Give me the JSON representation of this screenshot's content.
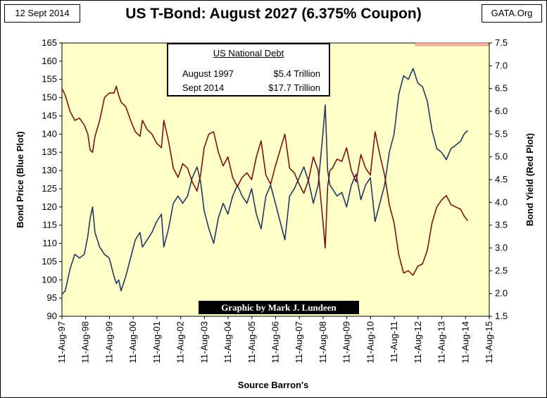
{
  "date_label": "12 Sept 2014",
  "site_label": "GATA.Org",
  "chart_data": {
    "type": "line",
    "title": "US T-Bond: August 2027 (6.375% Coupon)",
    "xlabel": "Source Barron's",
    "ylabel_left": "Bond Price   (Blue Plot)",
    "ylabel_right": "Bond Yield   (Red Plot)",
    "x_ticks": [
      "11-Aug-97",
      "11-Aug-98",
      "11-Aug-99",
      "11-Aug-00",
      "11-Aug-01",
      "11-Aug-02",
      "11-Aug-03",
      "11-Aug-04",
      "11-Aug-05",
      "11-Aug-06",
      "11-Aug-07",
      "11-Aug-08",
      "11-Aug-09",
      "11-Aug-10",
      "11-Aug-11",
      "11-Aug-12",
      "11-Aug-13",
      "11-Aug-14",
      "11-Aug-15"
    ],
    "x_range": [
      1997.61,
      2015.61
    ],
    "ylim_left": [
      90,
      165
    ],
    "ylim_right": [
      1.5,
      7.5
    ],
    "left_ticks": [
      90,
      95,
      100,
      105,
      110,
      115,
      120,
      125,
      130,
      135,
      140,
      145,
      150,
      155,
      160,
      165
    ],
    "right_ticks": [
      "1.5",
      "2.0",
      "2.5",
      "3.0",
      "3.5",
      "4.0",
      "4.5",
      "5.0",
      "5.5",
      "6.0",
      "6.5",
      "7.0",
      "7.5"
    ],
    "series": [
      {
        "name": "Bond Price",
        "axis": "left",
        "color": "#1f3864",
        "x": [
          1997.61,
          1997.75,
          1997.95,
          1998.15,
          1998.35,
          1998.55,
          1998.7,
          1998.8,
          1998.9,
          1999.0,
          1999.2,
          1999.4,
          1999.6,
          1999.8,
          1999.9,
          2000.0,
          2000.1,
          2000.3,
          2000.5,
          2000.7,
          2000.9,
          2001.0,
          2001.2,
          2001.4,
          2001.6,
          2001.8,
          2001.9,
          2002.1,
          2002.3,
          2002.5,
          2002.7,
          2002.9,
          2003.1,
          2003.3,
          2003.45,
          2003.6,
          2003.8,
          2004.0,
          2004.2,
          2004.4,
          2004.6,
          2004.8,
          2005.0,
          2005.2,
          2005.4,
          2005.6,
          2005.8,
          2006.0,
          2006.2,
          2006.4,
          2006.6,
          2006.8,
          2007.0,
          2007.2,
          2007.4,
          2007.6,
          2007.8,
          2008.0,
          2008.2,
          2008.4,
          2008.6,
          2008.7,
          2008.8,
          2008.9,
          2009.0,
          2009.2,
          2009.4,
          2009.6,
          2009.8,
          2010.0,
          2010.2,
          2010.4,
          2010.6,
          2010.8,
          2011.0,
          2011.2,
          2011.4,
          2011.6,
          2011.8,
          2012.0,
          2012.2,
          2012.4,
          2012.6,
          2012.8,
          2013.0,
          2013.2,
          2013.4,
          2013.6,
          2013.8,
          2014.0,
          2014.2,
          2014.4,
          2014.55,
          2014.7
        ],
        "values": [
          96,
          97,
          103,
          107,
          106,
          107,
          112,
          117,
          120,
          113,
          109,
          107,
          106,
          101,
          99,
          100,
          97,
          101,
          106,
          111,
          113,
          109,
          111,
          113,
          116,
          118,
          109,
          114,
          121,
          123,
          121,
          123,
          128,
          131,
          127,
          119,
          114,
          110,
          117,
          121,
          118,
          123,
          126,
          123,
          121,
          125,
          118,
          114,
          123,
          126,
          121,
          116,
          111,
          123,
          125,
          128,
          131,
          127,
          121,
          126,
          140,
          148,
          130,
          126,
          125,
          123,
          124,
          120,
          126,
          129,
          122,
          126,
          128,
          116,
          121,
          126,
          135,
          140,
          151,
          156,
          155,
          158,
          154,
          153,
          149,
          141,
          136,
          135,
          133,
          136,
          137,
          138,
          140,
          141
        ]
      },
      {
        "name": "Bond Yield",
        "axis": "right",
        "color": "#7f1010",
        "x": [
          1997.61,
          1997.75,
          1997.95,
          1998.15,
          1998.35,
          1998.55,
          1998.7,
          1998.8,
          1998.9,
          1999.0,
          1999.2,
          1999.4,
          1999.6,
          1999.8,
          1999.9,
          2000.0,
          2000.1,
          2000.3,
          2000.5,
          2000.7,
          2000.9,
          2001.0,
          2001.2,
          2001.4,
          2001.6,
          2001.8,
          2001.9,
          2002.1,
          2002.3,
          2002.5,
          2002.7,
          2002.9,
          2003.1,
          2003.3,
          2003.45,
          2003.6,
          2003.8,
          2004.0,
          2004.2,
          2004.4,
          2004.6,
          2004.8,
          2005.0,
          2005.2,
          2005.4,
          2005.6,
          2005.8,
          2006.0,
          2006.2,
          2006.4,
          2006.6,
          2006.8,
          2007.0,
          2007.2,
          2007.4,
          2007.6,
          2007.8,
          2008.0,
          2008.2,
          2008.4,
          2008.6,
          2008.7,
          2008.8,
          2008.9,
          2009.0,
          2009.2,
          2009.4,
          2009.6,
          2009.8,
          2010.0,
          2010.2,
          2010.4,
          2010.6,
          2010.8,
          2011.0,
          2011.2,
          2011.4,
          2011.6,
          2011.8,
          2012.0,
          2012.2,
          2012.4,
          2012.6,
          2012.8,
          2013.0,
          2013.2,
          2013.4,
          2013.6,
          2013.8,
          2014.0,
          2014.2,
          2014.4,
          2014.55,
          2014.7
        ],
        "values": [
          6.5,
          6.35,
          6.0,
          5.8,
          5.85,
          5.7,
          5.5,
          5.15,
          5.1,
          5.45,
          5.8,
          6.3,
          6.4,
          6.4,
          6.55,
          6.35,
          6.2,
          6.1,
          5.8,
          5.55,
          5.45,
          5.8,
          5.6,
          5.5,
          5.3,
          5.2,
          5.8,
          5.35,
          4.75,
          4.55,
          4.85,
          4.75,
          4.45,
          4.25,
          4.6,
          5.2,
          5.5,
          5.55,
          5.1,
          4.8,
          5.0,
          4.55,
          4.35,
          4.55,
          4.65,
          4.5,
          5.0,
          5.35,
          4.6,
          4.4,
          4.8,
          5.15,
          5.5,
          4.75,
          4.65,
          4.4,
          4.2,
          4.5,
          5.0,
          4.7,
          3.6,
          3.0,
          4.35,
          4.7,
          4.75,
          4.95,
          4.9,
          5.2,
          4.7,
          4.45,
          5.05,
          4.75,
          4.6,
          5.55,
          5.05,
          4.6,
          3.95,
          3.55,
          2.85,
          2.45,
          2.5,
          2.4,
          2.6,
          2.65,
          2.95,
          3.55,
          3.9,
          4.05,
          4.15,
          3.95,
          3.9,
          3.85,
          3.7,
          3.6
        ]
      }
    ],
    "annotations": [
      {
        "title": "US National Debt",
        "rows": [
          {
            "label": "August 1997",
            "value": "$5.4 Trillion"
          },
          {
            "label": "Sept 2014",
            "value": "$17.7 Trillion"
          }
        ]
      },
      {
        "text": "Graphic by Mark J. Lundeen"
      }
    ],
    "grid": false,
    "plot_background": "#ffffc8"
  }
}
